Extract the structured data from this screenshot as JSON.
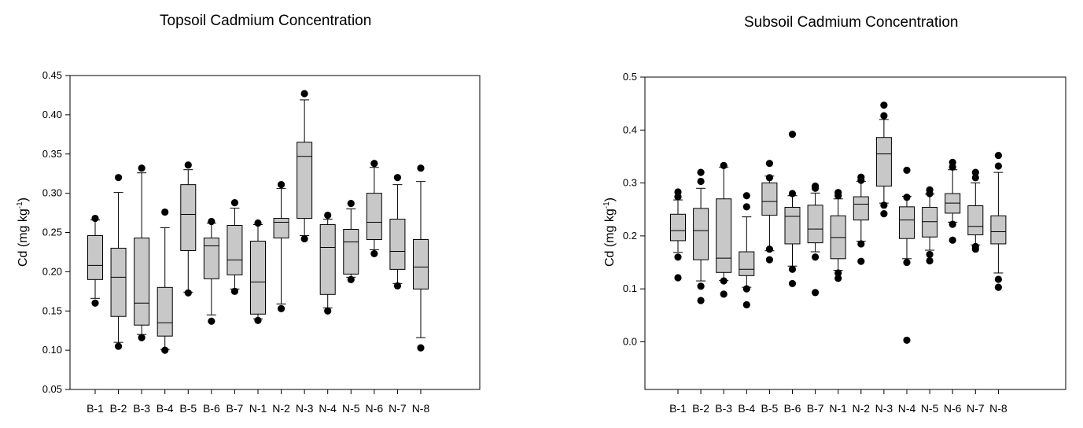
{
  "chart_data": [
    {
      "type": "box",
      "title": "Topsoil Cadmium Concentration",
      "ylabel_main": "Cd (mg kg",
      "ylabel_sup": "-1",
      "ylabel_end": ")",
      "ylim": [
        0.05,
        0.45
      ],
      "yticks": [
        "0.05",
        "0.10",
        "0.15",
        "0.20",
        "0.25",
        "0.30",
        "0.35",
        "0.40",
        "0.45"
      ],
      "categories": [
        "B-1",
        "B-2",
        "B-3",
        "B-4",
        "B-5",
        "B-6",
        "B-7",
        "N-1",
        "N-2",
        "N-3",
        "N-4",
        "N-5",
        "N-6",
        "N-7",
        "N-8"
      ],
      "boxes": [
        {
          "whisker_low": 0.166,
          "q1": 0.19,
          "median": 0.208,
          "q3": 0.246,
          "whisker_high": 0.266,
          "outliers": [
            0.16,
            0.268
          ]
        },
        {
          "whisker_low": 0.11,
          "q1": 0.143,
          "median": 0.193,
          "q3": 0.23,
          "whisker_high": 0.301,
          "outliers": [
            0.105,
            0.32
          ]
        },
        {
          "whisker_low": 0.12,
          "q1": 0.132,
          "median": 0.16,
          "q3": 0.243,
          "whisker_high": 0.326,
          "outliers": [
            0.116,
            0.332
          ]
        },
        {
          "whisker_low": 0.101,
          "q1": 0.118,
          "median": 0.135,
          "q3": 0.18,
          "whisker_high": 0.256,
          "outliers": [
            0.1,
            0.276
          ]
        },
        {
          "whisker_low": 0.174,
          "q1": 0.227,
          "median": 0.273,
          "q3": 0.311,
          "whisker_high": 0.33,
          "outliers": [
            0.173,
            0.336
          ]
        },
        {
          "whisker_low": 0.145,
          "q1": 0.191,
          "median": 0.233,
          "q3": 0.243,
          "whisker_high": 0.262,
          "outliers": [
            0.137,
            0.264
          ]
        },
        {
          "whisker_low": 0.178,
          "q1": 0.196,
          "median": 0.215,
          "q3": 0.259,
          "whisker_high": 0.281,
          "outliers": [
            0.175,
            0.288
          ]
        },
        {
          "whisker_low": 0.14,
          "q1": 0.146,
          "median": 0.187,
          "q3": 0.239,
          "whisker_high": 0.26,
          "outliers": [
            0.138,
            0.262
          ]
        },
        {
          "whisker_low": 0.159,
          "q1": 0.243,
          "median": 0.263,
          "q3": 0.268,
          "whisker_high": 0.306,
          "outliers": [
            0.153,
            0.311
          ]
        },
        {
          "whisker_low": 0.246,
          "q1": 0.268,
          "median": 0.347,
          "q3": 0.365,
          "whisker_high": 0.419,
          "outliers": [
            0.242,
            0.427
          ]
        },
        {
          "whisker_low": 0.154,
          "q1": 0.171,
          "median": 0.231,
          "q3": 0.26,
          "whisker_high": 0.267,
          "outliers": [
            0.15,
            0.272
          ]
        },
        {
          "whisker_low": 0.193,
          "q1": 0.197,
          "median": 0.238,
          "q3": 0.254,
          "whisker_high": 0.28,
          "outliers": [
            0.19,
            0.287
          ]
        },
        {
          "whisker_low": 0.228,
          "q1": 0.241,
          "median": 0.263,
          "q3": 0.3,
          "whisker_high": 0.333,
          "outliers": [
            0.223,
            0.338
          ]
        },
        {
          "whisker_low": 0.185,
          "q1": 0.203,
          "median": 0.226,
          "q3": 0.267,
          "whisker_high": 0.311,
          "outliers": [
            0.182,
            0.32
          ]
        },
        {
          "whisker_low": 0.116,
          "q1": 0.178,
          "median": 0.206,
          "q3": 0.241,
          "whisker_high": 0.315,
          "outliers": [
            0.103,
            0.332
          ]
        }
      ]
    },
    {
      "type": "box",
      "title": "Subsoil Cadmium Concentration",
      "ylabel_main": "Cd (mg kg",
      "ylabel_sup": "-1",
      "ylabel_end": ")",
      "ylim": [
        -0.09,
        0.5
      ],
      "yticks": [
        "0.0",
        "0.1",
        "0.2",
        "0.3",
        "0.4",
        "0.5"
      ],
      "ytick_values": [
        0.0,
        0.1,
        0.2,
        0.3,
        0.4,
        0.5
      ],
      "categories": [
        "B-1",
        "B-2",
        "B-3",
        "B-4",
        "B-5",
        "B-6",
        "B-7",
        "N-1",
        "N-2",
        "N-3",
        "N-4",
        "N-5",
        "N-6",
        "N-7",
        "N-8"
      ],
      "boxes": [
        {
          "whisker_low": 0.169,
          "q1": 0.191,
          "median": 0.21,
          "q3": 0.241,
          "whisker_high": 0.268,
          "outliers": [
            0.121,
            0.16,
            0.274,
            0.283
          ]
        },
        {
          "whisker_low": 0.115,
          "q1": 0.155,
          "median": 0.21,
          "q3": 0.252,
          "whisker_high": 0.29,
          "outliers": [
            0.078,
            0.105,
            0.303,
            0.32
          ]
        },
        {
          "whisker_low": 0.116,
          "q1": 0.131,
          "median": 0.158,
          "q3": 0.27,
          "whisker_high": 0.33,
          "outliers": [
            0.09,
            0.115,
            0.333
          ]
        },
        {
          "whisker_low": 0.103,
          "q1": 0.125,
          "median": 0.137,
          "q3": 0.17,
          "whisker_high": 0.236,
          "outliers": [
            0.07,
            0.1,
            0.255,
            0.276
          ]
        },
        {
          "whisker_low": 0.172,
          "q1": 0.239,
          "median": 0.265,
          "q3": 0.3,
          "whisker_high": 0.313,
          "outliers": [
            0.155,
            0.175,
            0.31,
            0.337
          ]
        },
        {
          "whisker_low": 0.143,
          "q1": 0.185,
          "median": 0.237,
          "q3": 0.254,
          "whisker_high": 0.276,
          "outliers": [
            0.11,
            0.137,
            0.28,
            0.392
          ]
        },
        {
          "whisker_low": 0.17,
          "q1": 0.187,
          "median": 0.213,
          "q3": 0.258,
          "whisker_high": 0.281,
          "outliers": [
            0.093,
            0.16,
            0.29,
            0.294
          ]
        },
        {
          "whisker_low": 0.135,
          "q1": 0.157,
          "median": 0.197,
          "q3": 0.238,
          "whisker_high": 0.27,
          "outliers": [
            0.12,
            0.13,
            0.276,
            0.282
          ]
        },
        {
          "whisker_low": 0.19,
          "q1": 0.23,
          "median": 0.26,
          "q3": 0.274,
          "whisker_high": 0.303,
          "outliers": [
            0.152,
            0.185,
            0.305,
            0.311
          ]
        },
        {
          "whisker_low": 0.262,
          "q1": 0.294,
          "median": 0.355,
          "q3": 0.386,
          "whisker_high": 0.42,
          "outliers": [
            0.242,
            0.258,
            0.427,
            0.447
          ]
        },
        {
          "whisker_low": 0.157,
          "q1": 0.195,
          "median": 0.23,
          "q3": 0.255,
          "whisker_high": 0.275,
          "outliers": [
            0.003,
            0.15,
            0.273,
            0.324
          ]
        },
        {
          "whisker_low": 0.173,
          "q1": 0.198,
          "median": 0.227,
          "q3": 0.254,
          "whisker_high": 0.279,
          "outliers": [
            0.153,
            0.165,
            0.28,
            0.287
          ]
        },
        {
          "whisker_low": 0.226,
          "q1": 0.243,
          "median": 0.262,
          "q3": 0.28,
          "whisker_high": 0.325,
          "outliers": [
            0.192,
            0.222,
            0.33,
            0.339
          ]
        },
        {
          "whisker_low": 0.183,
          "q1": 0.202,
          "median": 0.218,
          "q3": 0.257,
          "whisker_high": 0.3,
          "outliers": [
            0.175,
            0.18,
            0.31,
            0.32
          ]
        },
        {
          "whisker_low": 0.13,
          "q1": 0.185,
          "median": 0.208,
          "q3": 0.238,
          "whisker_high": 0.32,
          "outliers": [
            0.103,
            0.118,
            0.332,
            0.352
          ]
        }
      ]
    }
  ]
}
